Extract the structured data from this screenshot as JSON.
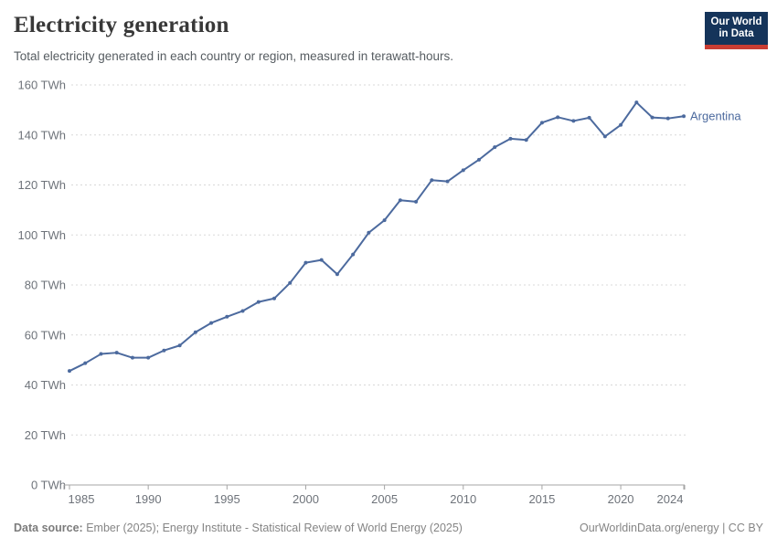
{
  "header": {
    "title": "Electricity generation",
    "subtitle": "Total electricity generated in each country or region, measured in terawatt-hours.",
    "logo": {
      "line1": "Our World",
      "line2": "in Data",
      "bg_color": "#15345a",
      "bar_color": "#c93d33"
    }
  },
  "chart_data": {
    "type": "line",
    "title": "Electricity generation",
    "xlabel": "",
    "ylabel": "TWh",
    "ylim": [
      0,
      160
    ],
    "xlim": [
      1985,
      2024
    ],
    "grid": "horizontal dashed",
    "legend_position": "end-of-line label",
    "y_ticks": [
      {
        "value": 0,
        "label": "0 TWh"
      },
      {
        "value": 20,
        "label": "20 TWh"
      },
      {
        "value": 40,
        "label": "40 TWh"
      },
      {
        "value": 60,
        "label": "60 TWh"
      },
      {
        "value": 80,
        "label": "80 TWh"
      },
      {
        "value": 100,
        "label": "100 TWh"
      },
      {
        "value": 120,
        "label": "120 TWh"
      },
      {
        "value": 140,
        "label": "140 TWh"
      },
      {
        "value": 160,
        "label": "160 TWh"
      }
    ],
    "x_ticks": [
      {
        "value": 1985,
        "label": "1985"
      },
      {
        "value": 1990,
        "label": "1990"
      },
      {
        "value": 1995,
        "label": "1995"
      },
      {
        "value": 2000,
        "label": "2000"
      },
      {
        "value": 2005,
        "label": "2005"
      },
      {
        "value": 2010,
        "label": "2010"
      },
      {
        "value": 2015,
        "label": "2015"
      },
      {
        "value": 2020,
        "label": "2020"
      },
      {
        "value": 2024,
        "label": "2024"
      }
    ],
    "series": [
      {
        "name": "Argentina",
        "color": "#4c6a9e",
        "x": [
          1985,
          1986,
          1987,
          1988,
          1989,
          1990,
          1991,
          1992,
          1993,
          1994,
          1995,
          1996,
          1997,
          1998,
          1999,
          2000,
          2001,
          2002,
          2003,
          2004,
          2005,
          2006,
          2007,
          2008,
          2009,
          2010,
          2011,
          2012,
          2013,
          2014,
          2015,
          2016,
          2017,
          2018,
          2019,
          2020,
          2021,
          2022,
          2023,
          2024
        ],
        "values": [
          45.6,
          48.7,
          52.4,
          52.9,
          50.9,
          50.9,
          53.8,
          55.8,
          61.1,
          64.8,
          67.3,
          69.6,
          73.2,
          74.6,
          80.8,
          88.9,
          90.0,
          84.3,
          92.2,
          100.9,
          105.9,
          113.9,
          113.3,
          121.9,
          121.4,
          125.9,
          130.1,
          135.1,
          138.5,
          138.0,
          144.9,
          147.1,
          145.6,
          146.9,
          139.4,
          144.0,
          153.0,
          147.0,
          146.6,
          147.5
        ]
      }
    ]
  },
  "footer": {
    "source_label": "Data source:",
    "source_text": " Ember (2025); Energy Institute - Statistical Review of World Energy (2025)",
    "right_text": "OurWorldinData.org/energy | CC BY"
  },
  "colors": {
    "line": "#4c6a9e",
    "gridline": "#d8d8d8",
    "axis": "#a5a5a5",
    "tick_label": "#6e737a",
    "title": "#383838",
    "subtitle": "#565c61",
    "footer": "#858585"
  }
}
